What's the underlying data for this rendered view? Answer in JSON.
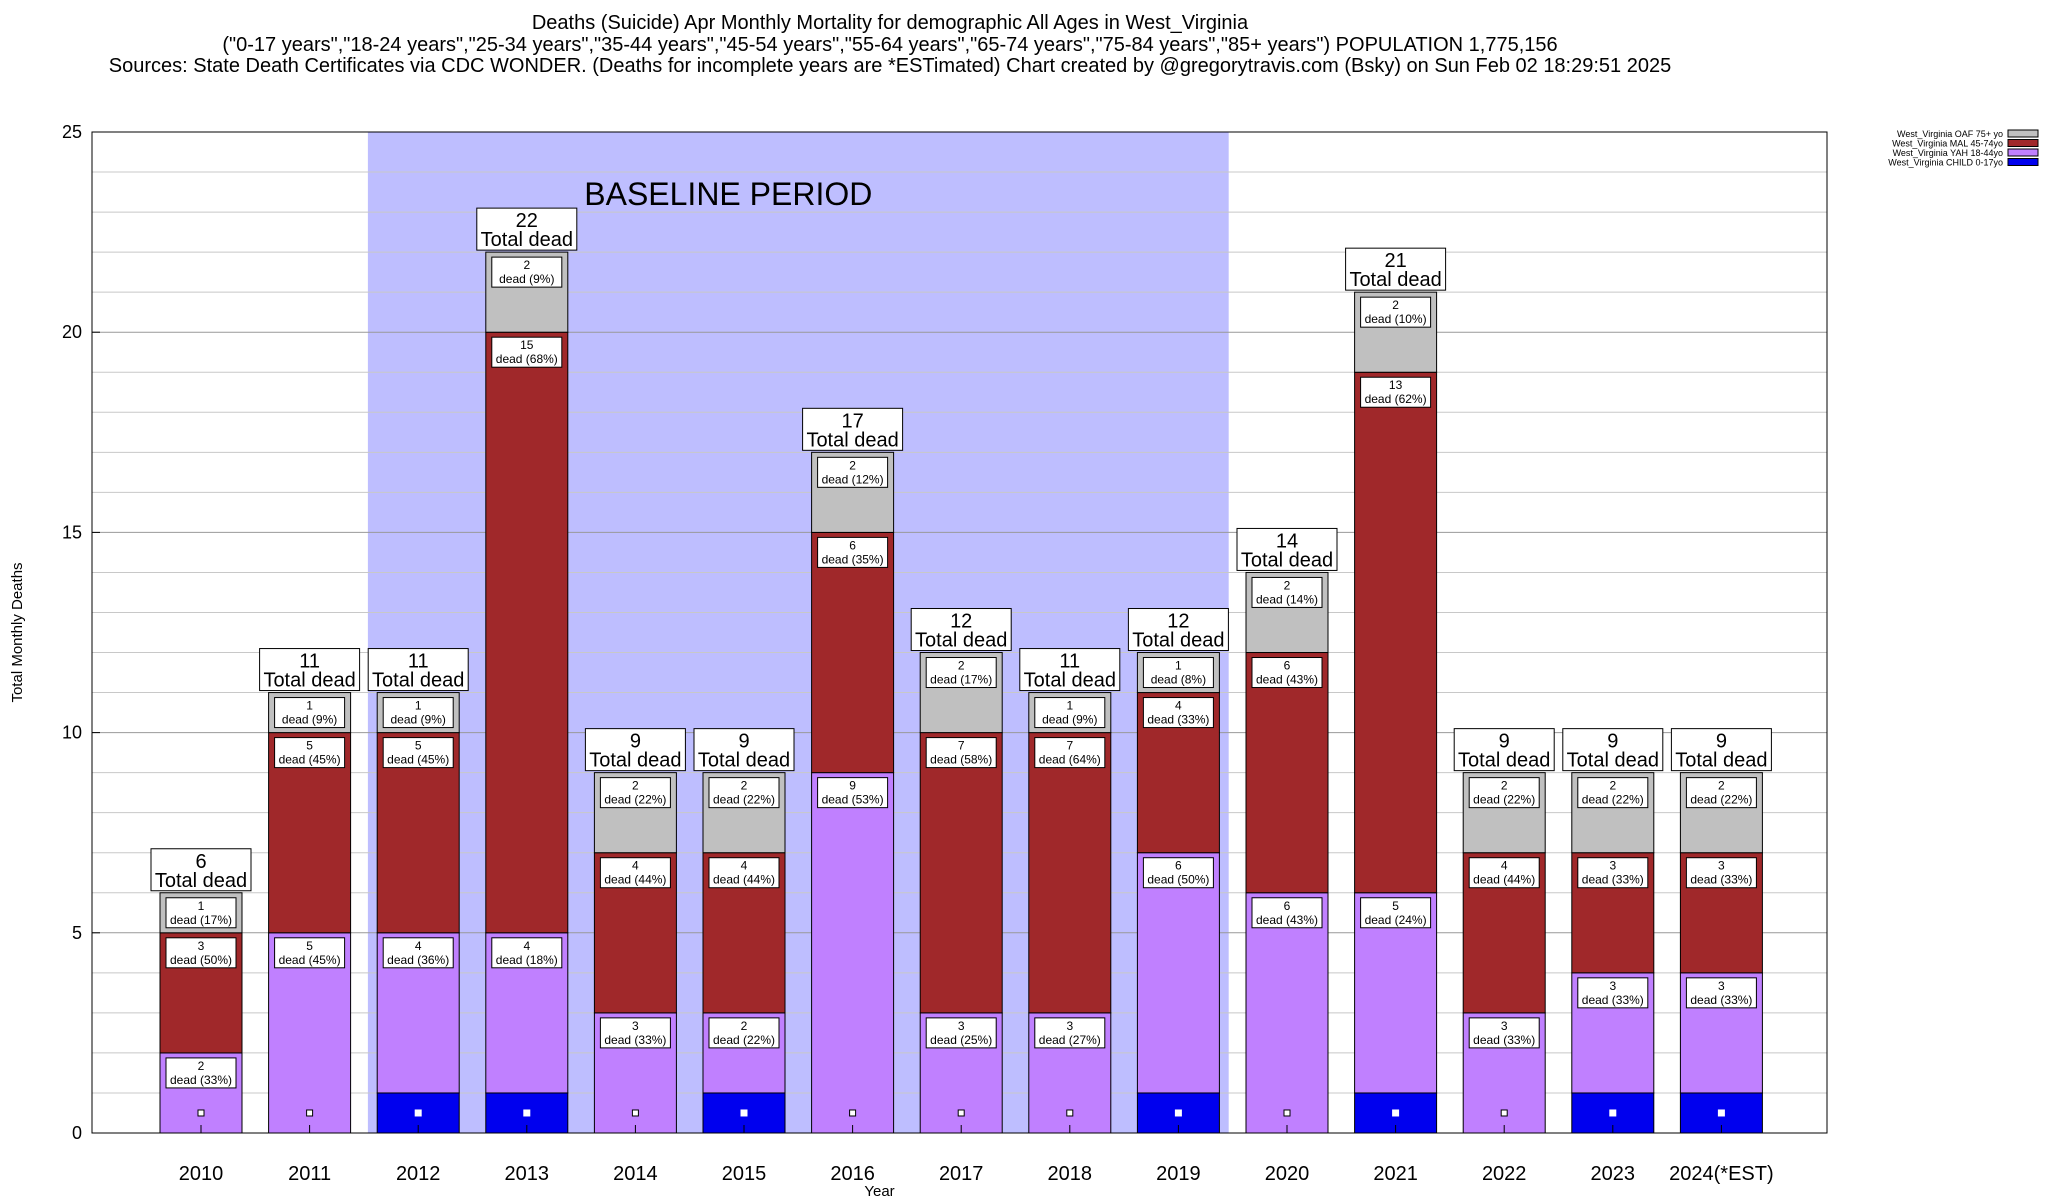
{
  "header": {
    "line1": "Deaths (Suicide) Apr Monthly Mortality for demographic All Ages in West_Virginia",
    "line2": "(\"0-17 years\",\"18-24 years\",\"25-34 years\",\"35-44 years\",\"45-54 years\",\"55-64 years\",\"65-74 years\",\"75-84 years\",\"85+ years\") POPULATION 1,775,156",
    "line3": "Sources: State Death Certificates via CDC WONDER. (Deaths for incomplete years are *ESTimated)                Chart created by @gregorytravis.com (Bsky) on Sun Feb 02 18:29:51 2025"
  },
  "chart_data": {
    "type": "bar",
    "stacked": true,
    "xlabel": "Year",
    "ylabel": "Total Monthly Deaths",
    "ylim": [
      0,
      25
    ],
    "yticks": [
      0,
      5,
      10,
      15,
      20,
      25
    ],
    "grid": true,
    "legend_position": "top-right",
    "baseline_label": "BASELINE PERIOD",
    "baseline_range": [
      "2012",
      "2019"
    ],
    "total_suffix": "Total dead",
    "categories": [
      "2010",
      "2011",
      "2012",
      "2013",
      "2014",
      "2015",
      "2016",
      "2017",
      "2018",
      "2019",
      "2020",
      "2021",
      "2022",
      "2023",
      "2024(*EST)"
    ],
    "totals": [
      6,
      11,
      11,
      22,
      9,
      9,
      17,
      12,
      11,
      12,
      14,
      21,
      9,
      9,
      9
    ],
    "series": [
      {
        "name": "West_Virginia CHILD 0-17yo",
        "color": "#0000ee",
        "values": [
          0,
          0,
          1,
          1,
          0,
          1,
          0,
          0,
          0,
          1,
          0,
          1,
          0,
          1,
          1
        ],
        "labels": [
          "",
          "",
          "",
          "",
          "",
          "",
          "",
          "",
          "",
          "",
          "",
          "",
          "",
          "",
          ""
        ]
      },
      {
        "name": "West_Virginia YAH 18-44yo",
        "color": "#c080ff",
        "values": [
          2,
          5,
          4,
          4,
          3,
          2,
          9,
          3,
          3,
          6,
          6,
          5,
          3,
          3,
          3
        ],
        "labels": [
          "dead (33%)",
          "dead (45%)",
          "dead (36%)",
          "dead (18%)",
          "dead (33%)",
          "dead (22%)",
          "dead (53%)",
          "dead (25%)",
          "dead (27%)",
          "dead (50%)",
          "dead (43%)",
          "dead (24%)",
          "dead (33%)",
          "dead (33%)",
          "dead (33%)"
        ]
      },
      {
        "name": "West_Virginia MAL 45-74yo",
        "color": "#a0282a",
        "values": [
          3,
          5,
          5,
          15,
          4,
          4,
          6,
          7,
          7,
          4,
          6,
          13,
          4,
          3,
          3
        ],
        "labels": [
          "dead (50%)",
          "dead (45%)",
          "dead (45%)",
          "dead (68%)",
          "dead (44%)",
          "dead (44%)",
          "dead (35%)",
          "dead (58%)",
          "dead (64%)",
          "dead (33%)",
          "dead (43%)",
          "dead (62%)",
          "dead (44%)",
          "dead (33%)",
          "dead (33%)"
        ]
      },
      {
        "name": "West_Virginia OAF 75+ yo",
        "color": "#c0c0c0",
        "values": [
          1,
          1,
          1,
          2,
          2,
          2,
          2,
          2,
          1,
          1,
          2,
          2,
          2,
          2,
          2
        ],
        "labels": [
          "dead (17%)",
          "dead (9%)",
          "dead (9%)",
          "dead (9%)",
          "dead (22%)",
          "dead (22%)",
          "dead (12%)",
          "dead (17%)",
          "dead (9%)",
          "dead (8%)",
          "dead (14%)",
          "dead (10%)",
          "dead (22%)",
          "dead (22%)",
          "dead (22%)"
        ]
      }
    ]
  }
}
